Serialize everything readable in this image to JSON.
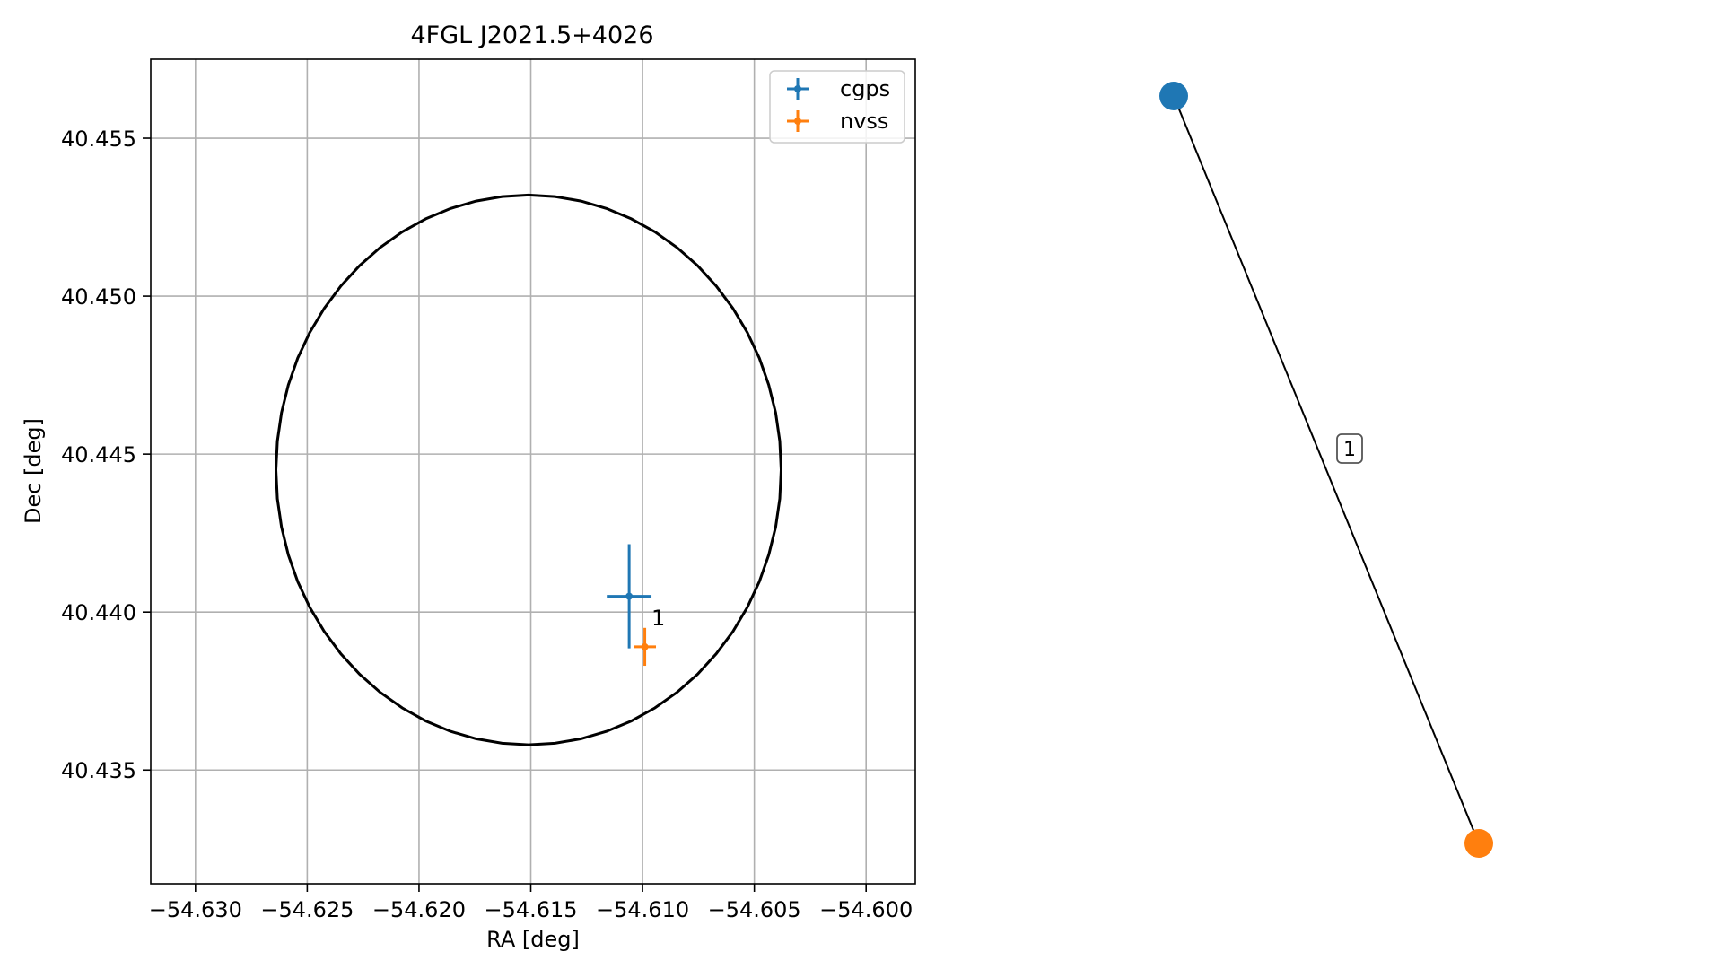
{
  "chart_data": [
    {
      "type": "scatter",
      "title": "4FGL J2021.5+4026",
      "xlabel": "RA [deg]",
      "ylabel": "Dec [deg]",
      "xlim": [
        -54.632,
        -54.5978
      ],
      "ylim": [
        40.4314,
        40.4575
      ],
      "x_ticks": [
        -54.63,
        -54.625,
        -54.62,
        -54.615,
        -54.61,
        -54.605,
        -54.6
      ],
      "x_tick_labels": [
        "−54.630",
        "−54.625",
        "−54.620",
        "−54.615",
        "−54.610",
        "−54.605",
        "−54.600"
      ],
      "y_ticks": [
        40.435,
        40.44,
        40.445,
        40.45,
        40.455
      ],
      "y_tick_labels": [
        "40.435",
        "40.440",
        "40.445",
        "40.450",
        "40.455"
      ],
      "grid": true,
      "legend_position": "top-right",
      "ellipse": {
        "center": [
          -54.6151,
          40.4445
        ],
        "ra_radius": 0.0113,
        "dec_radius": 0.0087,
        "color": "#000000"
      },
      "series": [
        {
          "name": "cgps",
          "color": "#1f77b4",
          "x": -54.6106,
          "y": 40.4405,
          "xerr": 0.001,
          "yerr": 0.00165
        },
        {
          "name": "nvss",
          "color": "#ff7f0e",
          "x": -54.6099,
          "y": 40.4389,
          "xerr": 0.0005,
          "yerr": 0.0006
        }
      ],
      "annotations": [
        {
          "text": "1",
          "x": -54.6096,
          "y": 40.4398
        }
      ]
    },
    {
      "type": "graph",
      "nodes": [
        {
          "id": "cgps",
          "color": "#1f77b4"
        },
        {
          "id": "nvss",
          "color": "#ff7f0e"
        }
      ],
      "edges": [
        {
          "source": "cgps",
          "target": "nvss",
          "label": "1"
        }
      ]
    }
  ]
}
